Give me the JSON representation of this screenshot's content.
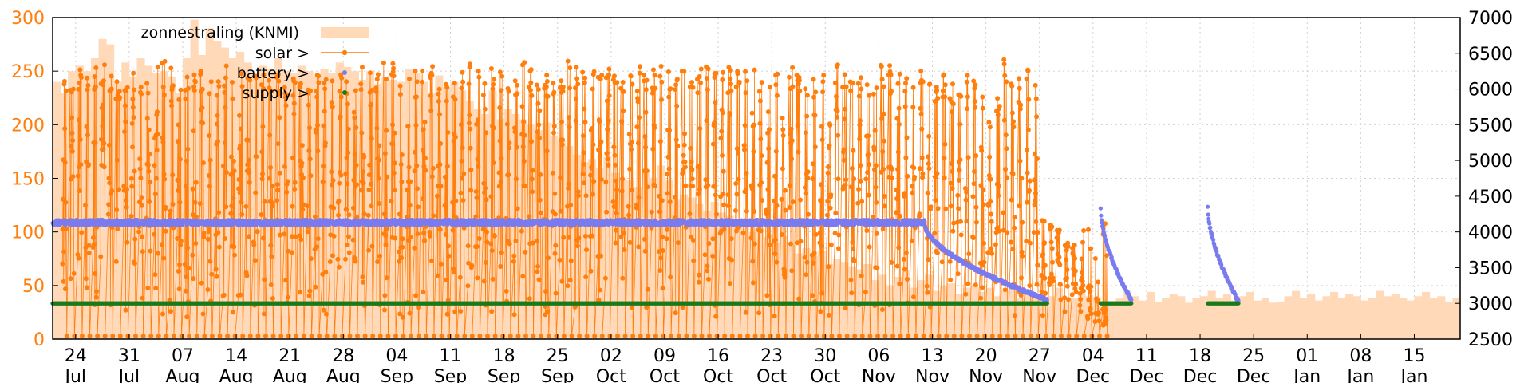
{
  "chart_data": {
    "type": "line",
    "title": "",
    "xlabel": "",
    "ylabel_left": "",
    "ylabel_right": "",
    "x_range": [
      "2023-07-21",
      "2024-01-21"
    ],
    "ylim_left": [
      0,
      300
    ],
    "ylim_right": [
      2500,
      7000
    ],
    "y_ticks_left": [
      0,
      50,
      100,
      150,
      200,
      250,
      300
    ],
    "y_ticks_right": [
      2500,
      3000,
      3500,
      4000,
      4500,
      5000,
      5500,
      6000,
      6500,
      7000
    ],
    "x_ticks": [
      {
        "date": "2023-07-24",
        "day": "24",
        "month": "Jul"
      },
      {
        "date": "2023-07-31",
        "day": "31",
        "month": "Jul"
      },
      {
        "date": "2023-08-07",
        "day": "07",
        "month": "Aug"
      },
      {
        "date": "2023-08-14",
        "day": "14",
        "month": "Aug"
      },
      {
        "date": "2023-08-21",
        "day": "21",
        "month": "Aug"
      },
      {
        "date": "2023-08-28",
        "day": "28",
        "month": "Aug"
      },
      {
        "date": "2023-09-04",
        "day": "04",
        "month": "Sep"
      },
      {
        "date": "2023-09-11",
        "day": "11",
        "month": "Sep"
      },
      {
        "date": "2023-09-18",
        "day": "18",
        "month": "Sep"
      },
      {
        "date": "2023-09-25",
        "day": "25",
        "month": "Sep"
      },
      {
        "date": "2023-10-02",
        "day": "02",
        "month": "Oct"
      },
      {
        "date": "2023-10-09",
        "day": "09",
        "month": "Oct"
      },
      {
        "date": "2023-10-16",
        "day": "16",
        "month": "Oct"
      },
      {
        "date": "2023-10-23",
        "day": "23",
        "month": "Oct"
      },
      {
        "date": "2023-10-30",
        "day": "30",
        "month": "Oct"
      },
      {
        "date": "2023-11-06",
        "day": "06",
        "month": "Nov"
      },
      {
        "date": "2023-11-13",
        "day": "13",
        "month": "Nov"
      },
      {
        "date": "2023-11-20",
        "day": "20",
        "month": "Nov"
      },
      {
        "date": "2023-11-27",
        "day": "27",
        "month": "Nov"
      },
      {
        "date": "2023-12-04",
        "day": "04",
        "month": "Dec"
      },
      {
        "date": "2023-12-11",
        "day": "11",
        "month": "Dec"
      },
      {
        "date": "2023-12-18",
        "day": "18",
        "month": "Dec"
      },
      {
        "date": "2023-12-25",
        "day": "25",
        "month": "Dec"
      },
      {
        "date": "2024-01-01",
        "day": "01",
        "month": "Jan"
      },
      {
        "date": "2024-01-08",
        "day": "08",
        "month": "Jan"
      },
      {
        "date": "2024-01-15",
        "day": "15",
        "month": "Jan"
      }
    ],
    "grid": true,
    "legend": {
      "placement": "top-left",
      "entries": [
        {
          "label": "zonnestraling (KNMI)",
          "type": "fill",
          "color": "#ffd9b8"
        },
        {
          "label": "solar >",
          "type": "linepoints",
          "color": "#ff7f0e"
        },
        {
          "label": "battery >",
          "type": "points",
          "color": "#7b7bf0"
        },
        {
          "label": "supply >",
          "type": "points",
          "color": "#1a7a1a"
        }
      ]
    },
    "series": [
      {
        "name": "zonnestraling (KNMI)",
        "axis": "left",
        "style": "filled-steps",
        "color": "#ffd9b8",
        "x_start": "2023-07-21",
        "step_days": 1,
        "values": [
          240,
          230,
          250,
          255,
          250,
          262,
          280,
          275,
          240,
          258,
          245,
          262,
          255,
          248,
          250,
          245,
          230,
          262,
          298,
          265,
          290,
          278,
          272,
          262,
          268,
          258,
          248,
          255,
          252,
          262,
          250,
          248,
          255,
          250,
          245,
          252,
          248,
          258,
          254,
          250,
          242,
          250,
          238,
          245,
          242,
          240,
          252,
          248,
          240,
          230,
          246,
          235,
          240,
          232,
          222,
          215,
          210,
          232,
          205,
          215,
          210,
          205,
          200,
          195,
          202,
          190,
          185,
          180,
          172,
          165,
          168,
          160,
          170,
          155,
          150,
          148,
          142,
          155,
          150,
          162,
          148,
          130,
          135,
          132,
          126,
          120,
          128,
          118,
          115,
          110,
          104,
          100,
          108,
          95,
          90,
          96,
          88,
          80,
          85,
          78,
          82,
          70,
          75,
          72,
          68,
          65,
          70,
          55,
          60,
          50,
          58,
          64,
          48,
          55,
          60,
          45,
          50,
          52,
          42,
          48,
          50,
          44,
          48,
          40,
          45,
          50,
          38,
          45,
          42,
          35,
          40,
          48,
          36,
          38,
          42,
          40,
          38,
          35,
          32,
          38,
          45,
          40,
          36,
          44,
          35,
          38,
          42,
          40,
          34,
          38,
          40,
          45,
          38,
          42,
          36,
          40,
          44,
          36,
          38,
          34,
          35,
          40,
          45,
          38,
          42,
          36,
          40,
          44,
          38,
          42,
          40,
          36,
          38,
          45,
          40,
          42,
          38,
          36,
          40,
          44,
          38,
          40,
          35,
          38,
          42,
          40
        ]
      },
      {
        "name": "solar >",
        "axis": "left",
        "style": "linepoints",
        "color": "#ff7f0e",
        "daily_peak_start": "2023-07-22",
        "daily_peak_values": [
          250,
          248,
          252,
          245,
          255,
          258,
          250,
          248,
          256,
          252,
          250,
          248,
          258,
          262,
          255,
          250,
          246,
          252,
          258,
          250,
          244,
          256,
          248,
          250,
          252,
          246,
          250,
          248,
          254,
          250,
          246,
          248,
          244,
          250,
          252,
          256,
          248,
          250,
          254,
          258,
          252,
          256,
          260,
          262,
          258,
          264,
          250,
          256,
          258,
          262,
          248,
          250,
          256,
          262,
          258,
          252,
          254,
          250,
          246,
          252,
          262,
          258,
          256,
          250,
          248,
          252,
          260,
          256,
          254,
          250,
          248,
          252,
          256,
          258,
          262,
          256,
          250,
          254,
          256,
          252,
          248,
          250,
          246,
          252,
          256,
          250,
          258,
          254,
          250,
          252,
          256,
          248,
          254,
          252,
          260,
          258,
          254,
          250,
          256,
          252,
          262,
          256,
          258,
          252,
          254,
          246,
          250,
          256,
          258,
          250,
          244,
          248,
          252,
          246,
          238,
          250,
          242,
          248,
          258,
          244,
          236,
          240,
          230,
          262,
          252,
          244,
          258,
          240,
          118,
          112,
          105,
          95,
          88,
          72,
          52,
          40,
          30
        ],
        "end_date": "2023-11-28"
      },
      {
        "name": "battery >",
        "axis": "right",
        "style": "points",
        "color": "#7b7bf0",
        "segments": [
          {
            "start": "2023-07-21",
            "end": "2023-11-12",
            "mean": 4130,
            "jitter": 40
          },
          {
            "start": "2023-11-12",
            "end": "2023-11-28",
            "from": 4100,
            "to": 3050
          },
          {
            "start": "2023-12-05",
            "end": "2023-12-09",
            "from": 4320,
            "to": 3050
          },
          {
            "start": "2023-12-19",
            "end": "2023-12-23",
            "from": 4340,
            "to": 3030
          }
        ]
      },
      {
        "name": "supply >",
        "axis": "right",
        "style": "points",
        "color": "#1a7a1a",
        "segments": [
          {
            "start": "2023-07-21",
            "end": "2023-11-28",
            "value": 3000
          },
          {
            "start": "2023-12-05",
            "end": "2023-12-09",
            "value": 3000
          },
          {
            "start": "2023-12-19",
            "end": "2023-12-23",
            "value": 3000
          }
        ]
      }
    ]
  }
}
